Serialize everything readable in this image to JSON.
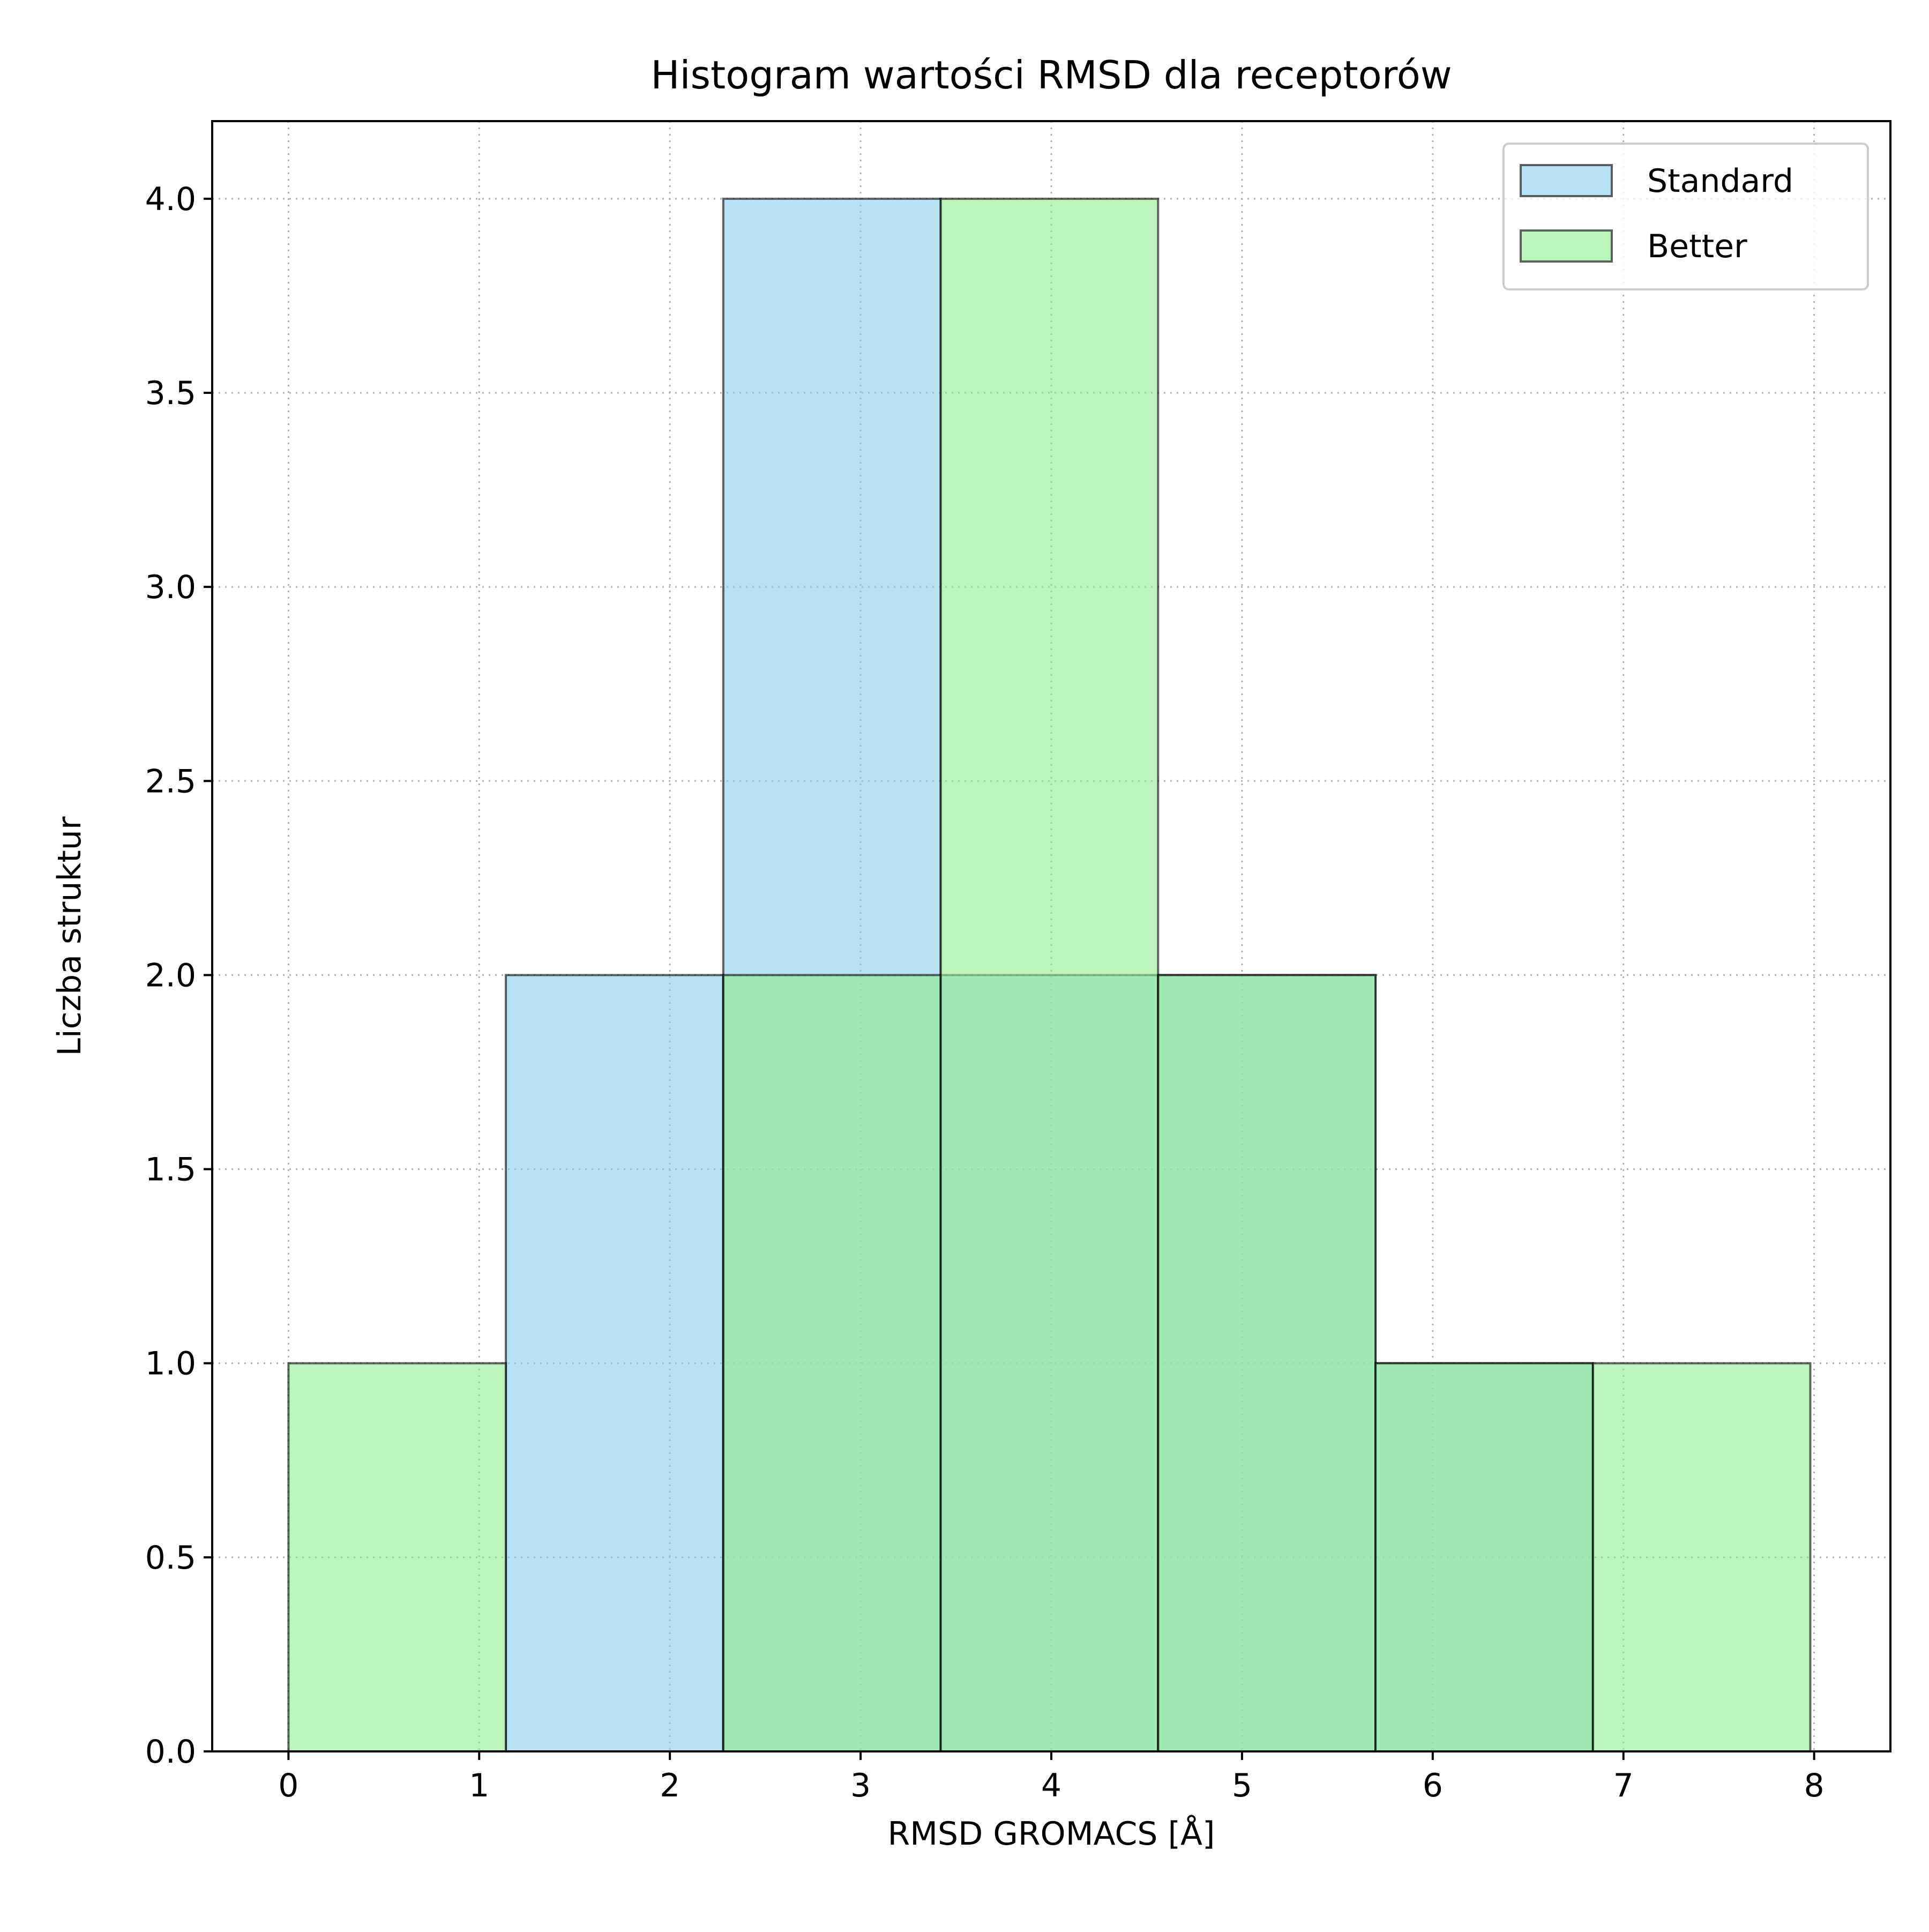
{
  "chart_data": {
    "type": "bar",
    "title": "Histogram wartości RMSD dla receptorów",
    "xlabel": "RMSD GROMACS [Å]",
    "ylabel": "Liczba struktur",
    "xlim": [
      -0.4,
      8.4
    ],
    "ylim": [
      0,
      4.2
    ],
    "xticks": [
      "0",
      "1",
      "2",
      "3",
      "4",
      "5",
      "6",
      "7",
      "8"
    ],
    "yticks": [
      "0.0",
      "0.5",
      "1.0",
      "1.5",
      "2.0",
      "2.5",
      "3.0",
      "3.5",
      "4.0"
    ],
    "grid": true,
    "legend_position": "top-right",
    "bin_edges": [
      0.0,
      1.14,
      2.28,
      3.42,
      4.56,
      5.7,
      6.84,
      7.98
    ],
    "series": [
      {
        "name": "Standard",
        "color": "#87ceeb",
        "values": [
          0,
          2,
          4,
          2,
          2,
          1,
          0
        ]
      },
      {
        "name": "Better",
        "color": "#90ee90",
        "values": [
          1,
          0,
          2,
          4,
          2,
          1,
          1
        ]
      }
    ]
  }
}
